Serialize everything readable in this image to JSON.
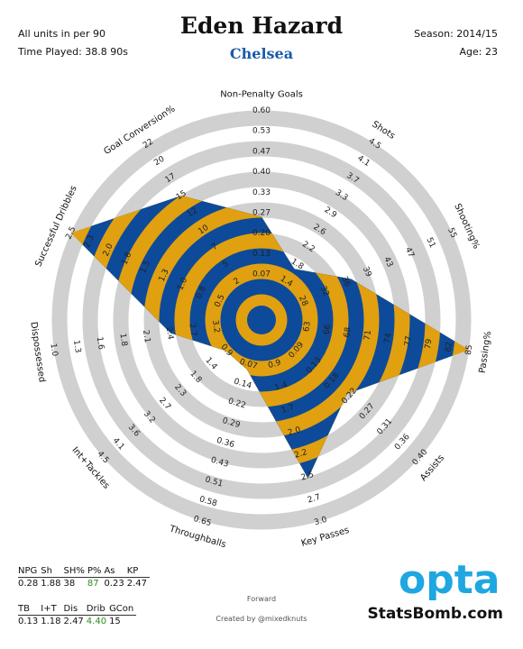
{
  "header": {
    "units": "All units in per 90",
    "time_played": "Time Played: 38.8 90s",
    "player": "Eden Hazard",
    "team": "Chelsea",
    "season": "Season: 2014/15",
    "age": "Age: 23"
  },
  "colors": {
    "gold": "#e0a010",
    "blue": "#0d4a9a",
    "ring": "#d0d0d0",
    "team": "#1a5aa8",
    "highlight": "#2e8b20"
  },
  "chart_data": {
    "type": "radar",
    "title": "Eden Hazard",
    "rings": 5,
    "axes": [
      {
        "label": "Non-Penalty Goals",
        "ticks": [
          "0.07",
          "0.13",
          "0.20",
          "0.27",
          "0.33",
          "0.40",
          "0.47",
          "0.53",
          "0.60"
        ],
        "value": 0.28
      },
      {
        "label": "Shots",
        "ticks": [
          "1.4",
          "1.8",
          "2.2",
          "2.6",
          "2.9",
          "3.3",
          "3.7",
          "4.1",
          "4.5"
        ],
        "value": 1.88
      },
      {
        "label": "Shooting%",
        "ticks": [
          "28",
          "32",
          "36",
          "39",
          "43",
          "47",
          "51",
          "55"
        ],
        "value": 38
      },
      {
        "label": "Passing%",
        "ticks": [
          "63",
          "66",
          "68",
          "71",
          "74",
          "77",
          "79",
          "82",
          "85"
        ],
        "value": 87
      },
      {
        "label": "Assists",
        "ticks": [
          "0.09",
          "0.13",
          "0.18",
          "0.22",
          "0.27",
          "0.31",
          "0.36",
          "0.40"
        ],
        "value": 0.23
      },
      {
        "label": "Key Passes",
        "ticks": [
          "0.9",
          "1.4",
          "1.7",
          "2.0",
          "2.2",
          "2.5",
          "2.7",
          "3.0"
        ],
        "value": 2.47
      },
      {
        "label": "Throughballs",
        "ticks": [
          "0.07",
          "0.14",
          "0.22",
          "0.29",
          "0.36",
          "0.43",
          "0.51",
          "0.58",
          "0.65"
        ],
        "value": 0.13
      },
      {
        "label": "Int+Tackles",
        "ticks": [
          "0.9",
          "1.4",
          "1.8",
          "2.3",
          "2.7",
          "3.2",
          "3.6",
          "4.1",
          "4.5"
        ],
        "value": 1.18
      },
      {
        "label": "Dispossessed",
        "ticks": [
          "3.2",
          "2.7",
          "2.4",
          "2.1",
          "1.8",
          "1.6",
          "1.3",
          "1.0"
        ],
        "value": 2.47
      },
      {
        "label": "Successful Dribbles",
        "ticks": [
          "0.5",
          "0.8",
          "1.0",
          "1.3",
          "1.5",
          "1.8",
          "2.0",
          "2.3",
          "2.5"
        ],
        "value": 4.4
      },
      {
        "label": "Goal Conversion%",
        "ticks": [
          "2",
          "5",
          "7",
          "10",
          "12",
          "15",
          "17",
          "20",
          "22"
        ],
        "value": 15
      }
    ]
  },
  "stats_top": {
    "headers": [
      "NPG",
      "Sh",
      "SH%",
      "P%",
      "As",
      "KP"
    ],
    "values": [
      "0.28",
      "1.88",
      "38",
      "87",
      "0.23",
      "2.47"
    ],
    "highlight": [
      false,
      false,
      false,
      true,
      false,
      false
    ]
  },
  "stats_bottom": {
    "headers": [
      "TB",
      "I+T",
      "Dis",
      "Drib",
      "GCon"
    ],
    "values": [
      "0.13",
      "1.18",
      "2.47",
      "4.40",
      "15"
    ],
    "highlight": [
      false,
      false,
      false,
      true,
      false
    ]
  },
  "footer": {
    "role": "Forward",
    "credit": "Created by @mixedknuts",
    "opta": "opta",
    "statsbomb": "StatsBomb.com"
  }
}
